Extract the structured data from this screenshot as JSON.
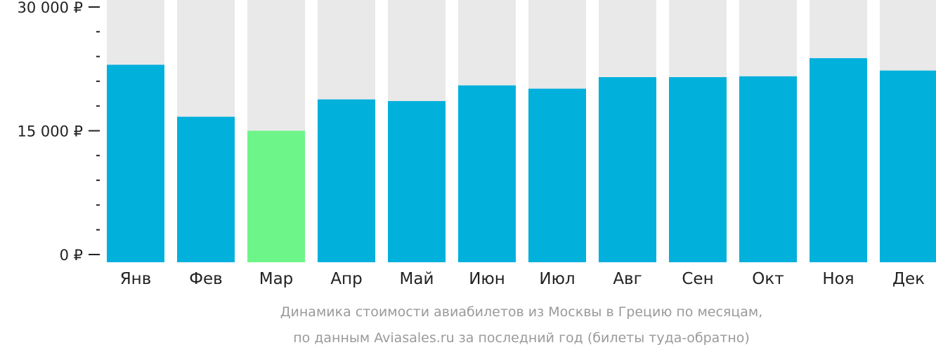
{
  "chart_data": {
    "type": "bar",
    "categories": [
      "Янв",
      "Фев",
      "Мар",
      "Апр",
      "Май",
      "Июн",
      "Июл",
      "Авг",
      "Сен",
      "Окт",
      "Ноя",
      "Дек"
    ],
    "values": [
      23000,
      16700,
      15000,
      18800,
      18600,
      20500,
      20100,
      21500,
      21500,
      21600,
      23800,
      22300
    ],
    "ylim": [
      0,
      30000
    ],
    "yticks": [
      0,
      15000,
      30000
    ],
    "ytick_labels": [
      "0 ₽",
      "15 000 ₽",
      "30 000 ₽"
    ],
    "minor_ticks_between": 4,
    "highlight_index": 2,
    "grid": false,
    "legend": "none",
    "colors": {
      "bar": "#02b0dc",
      "highlight": "#6ef589",
      "background_bar": "#e9e9e9",
      "axis": "#222222",
      "caption": "#9a9a9a"
    },
    "caption_lines": [
      "Динамика стоимости авиабилетов из Москвы в Грецию по месяцам,",
      "по данным Aviasales.ru за последний год (билеты туда-обратно)"
    ]
  }
}
